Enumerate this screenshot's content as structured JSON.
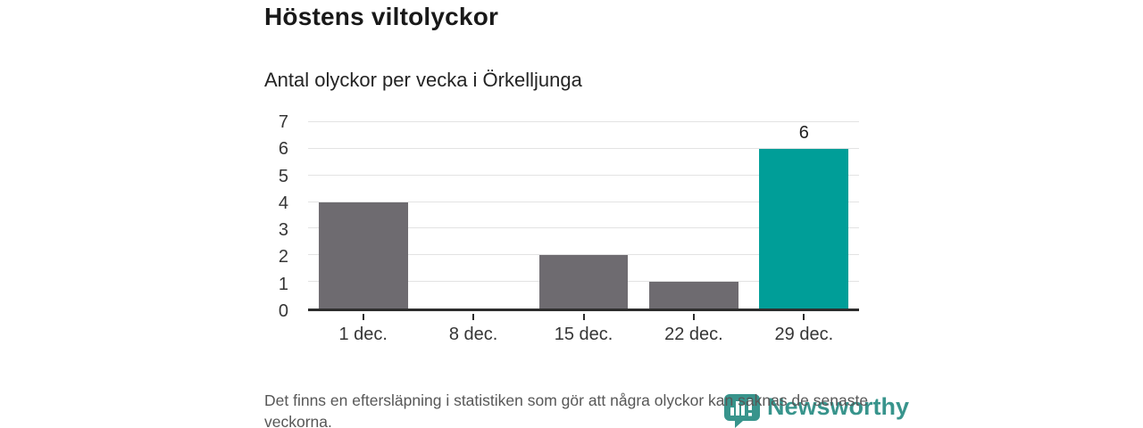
{
  "chart_data": {
    "type": "bar",
    "title": "Höstens viltolyckor",
    "subtitle": "Antal olyckor per vecka i Örkelljunga",
    "categories": [
      "1 dec.",
      "8 dec.",
      "15 dec.",
      "22 dec.",
      "29 dec."
    ],
    "values": [
      4,
      0,
      2,
      1,
      6
    ],
    "data_labels": [
      null,
      null,
      null,
      null,
      "6"
    ],
    "highlight_index": 4,
    "xlabel": "",
    "ylabel": "",
    "ylim": [
      0,
      7
    ],
    "yticks": [
      0,
      1,
      2,
      3,
      4,
      5,
      6,
      7
    ],
    "grid": true,
    "legend": "none",
    "colors": {
      "bar": "#6E6B70",
      "highlight": "#009E98",
      "gridline": "#E3E3E3",
      "axis_line": "#2D2D2D",
      "tick_label": "#363636"
    }
  },
  "footer": {
    "note": "Det finns en eftersläpning i statistiken som gör att några olyckor kan saknas de senaste veckorna."
  },
  "logo": {
    "text": "Newsworthy",
    "color": "#38948C",
    "icon": "newsworthy-bubble-barchart-icon"
  }
}
